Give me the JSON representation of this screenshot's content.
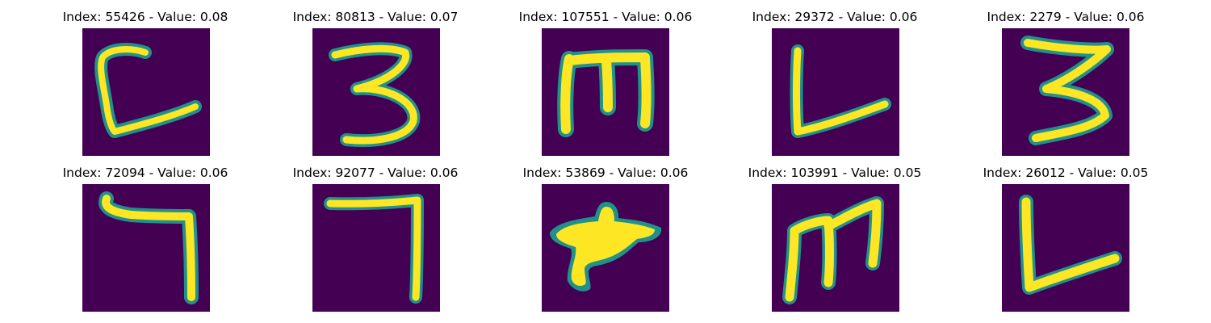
{
  "colors": {
    "background": "#440154",
    "stroke_edge": "#21918c",
    "stroke_core": "#fde725",
    "title_text": "#000000"
  },
  "panels": [
    {
      "index": "55426",
      "value": "0.08",
      "title": "Index: 55426 - Value: 0.08",
      "glyph": "c-shape"
    },
    {
      "index": "80813",
      "value": "0.07",
      "title": "Index: 80813 - Value: 0.07",
      "glyph": "three"
    },
    {
      "index": "107551",
      "value": "0.06",
      "title": "Index: 107551 - Value: 0.06",
      "glyph": "m-rotated"
    },
    {
      "index": "29372",
      "value": "0.06",
      "title": "Index: 29372 - Value: 0.06",
      "glyph": "l-shape"
    },
    {
      "index": "2279",
      "value": "0.06",
      "title": "Index: 2279 - Value: 0.06",
      "glyph": "three-angular"
    },
    {
      "index": "72094",
      "value": "0.06",
      "title": "Index: 72094 - Value: 0.06",
      "glyph": "seven-curl"
    },
    {
      "index": "92077",
      "value": "0.06",
      "title": "Index: 92077 - Value: 0.06",
      "glyph": "seven"
    },
    {
      "index": "53869",
      "value": "0.06",
      "title": "Index: 53869 - Value: 0.06",
      "glyph": "blob"
    },
    {
      "index": "103991",
      "value": "0.05",
      "title": "Index: 103991 - Value: 0.05",
      "glyph": "m-script"
    },
    {
      "index": "26012",
      "value": "0.05",
      "title": "Index: 26012 - Value: 0.05",
      "glyph": "l-wide"
    }
  ]
}
